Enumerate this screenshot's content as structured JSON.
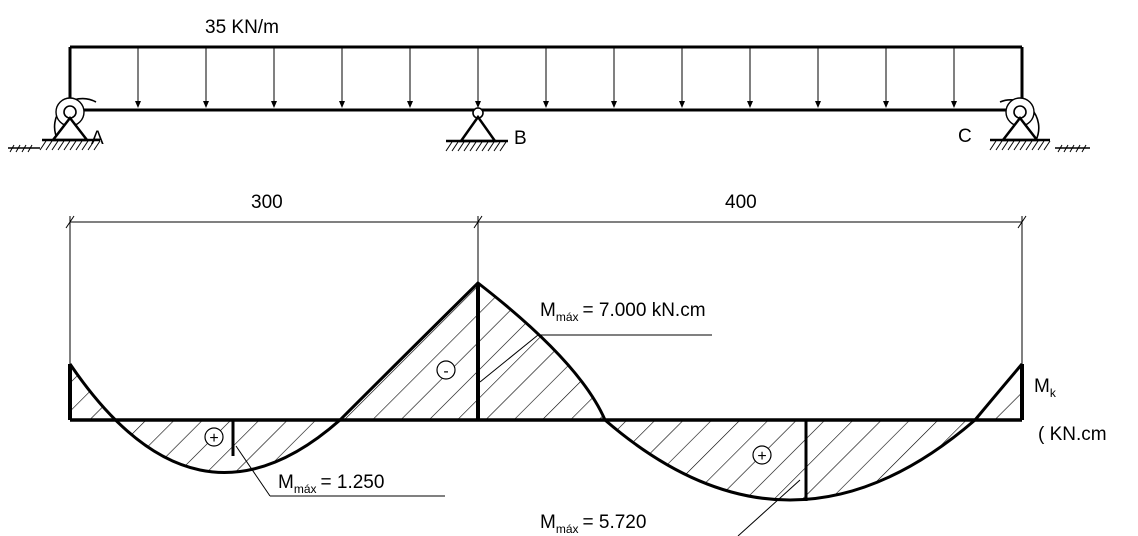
{
  "load": {
    "label": "35 KN/m"
  },
  "supports": {
    "a": "A",
    "b": "B",
    "c": "C"
  },
  "spans": {
    "left": "300",
    "right": "400"
  },
  "signs": {
    "plus": "+",
    "minus": "-"
  },
  "moments": {
    "support_b": {
      "symbol": "M",
      "subscript": "máx",
      "value": "= 7.000 kN.cm"
    },
    "span_ab": {
      "symbol": "M",
      "subscript": "máx",
      "value": "= 1.250"
    },
    "span_bc": {
      "symbol": "M",
      "subscript": "máx",
      "value": "= 5.720"
    }
  },
  "diagram_label": {
    "symbol": "M",
    "subscript": "k",
    "units": "( KN.cm"
  }
}
